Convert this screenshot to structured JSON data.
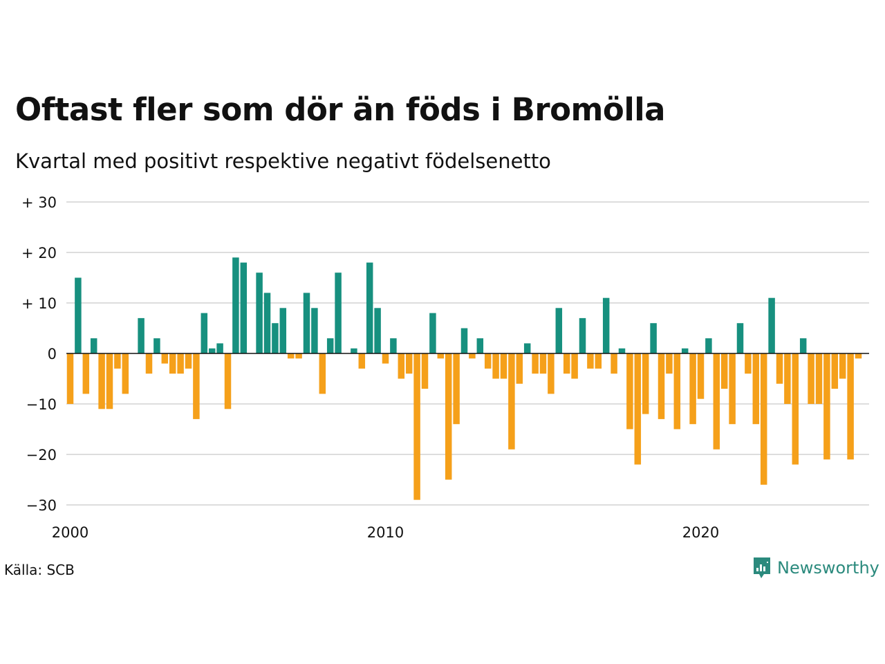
{
  "header": {
    "title": "Oftast fler som dör än föds i Bromölla",
    "subtitle": "Kvartal med positivt respektive negativt födelsenetto"
  },
  "footer": {
    "source": "Källa: SCB",
    "brand": "Newsworthy",
    "brand_icon": "newsworthy-logo-icon"
  },
  "colors": {
    "positive": "#17907f",
    "negative": "#f5a01a",
    "brand": "#2b8a7d"
  },
  "chart_data": {
    "type": "bar",
    "x_start": "2000 Q1",
    "period": "quarter",
    "ylim": [
      -30,
      30
    ],
    "y_ticks": [
      30,
      20,
      10,
      0,
      -10,
      -20,
      -30
    ],
    "y_tick_labels": [
      "+ 30",
      "+ 20",
      "+ 10",
      "0",
      "−10",
      "−20",
      "−30"
    ],
    "x_ticks": [
      "2000",
      "2010",
      "2020"
    ],
    "grid": true,
    "values": [
      -10,
      15,
      -8,
      3,
      -11,
      -11,
      -3,
      -8,
      0,
      7,
      -4,
      3,
      -2,
      -4,
      -4,
      -3,
      -13,
      8,
      1,
      2,
      -11,
      19,
      18,
      0,
      16,
      12,
      6,
      9,
      -1,
      -1,
      12,
      9,
      -8,
      3,
      16,
      0,
      1,
      -3,
      18,
      9,
      -2,
      3,
      -5,
      -4,
      -29,
      -7,
      8,
      -1,
      -25,
      -14,
      5,
      -1,
      3,
      -3,
      -5,
      -5,
      -19,
      -6,
      2,
      -4,
      -4,
      -8,
      9,
      -4,
      -5,
      7,
      -3,
      -3,
      11,
      -4,
      1,
      -15,
      -22,
      -12,
      6,
      -13,
      -4,
      -15,
      1,
      -14,
      -9,
      3,
      -19,
      -7,
      -14,
      6,
      -4,
      -14,
      -26,
      11,
      -6,
      -10,
      -22,
      3,
      -10,
      -10,
      -21,
      -7,
      -5,
      -21,
      -1
    ]
  }
}
